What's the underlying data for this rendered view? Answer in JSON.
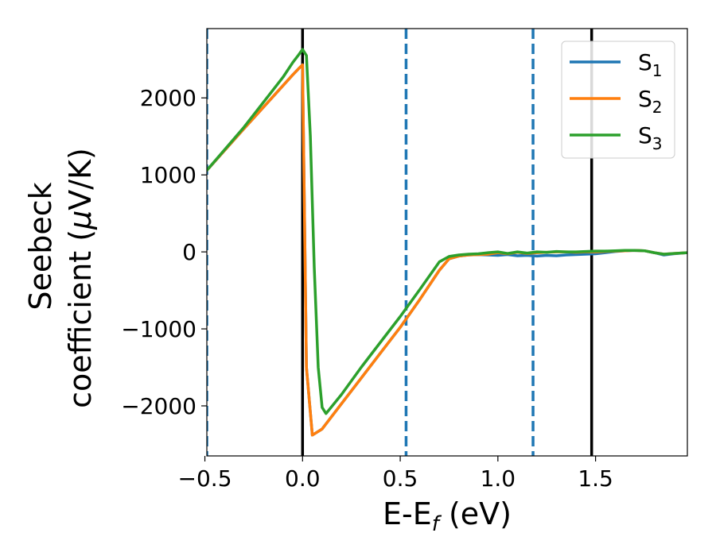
{
  "chart_data": {
    "type": "line",
    "title": "",
    "xlabel": "E-E",
    "xlabel_sub": "f",
    "xlabel_unit": " (eV)",
    "ylabel_line1": "Seebeck",
    "ylabel_line2": "coefficient  (",
    "ylabel_mu": "μ",
    "ylabel_unit": "V/K)",
    "xlim": [
      -0.49,
      1.97
    ],
    "ylim": [
      -2650,
      2900
    ],
    "xticks": [
      -0.5,
      0.0,
      0.5,
      1.0,
      1.5
    ],
    "xtick_labels": [
      "−0.5",
      "0.0",
      "0.5",
      "1.0",
      "1.5"
    ],
    "yticks": [
      -2000,
      -1000,
      0,
      1000,
      2000
    ],
    "ytick_labels": [
      "−2000",
      "−1000",
      "0",
      "1000",
      "2000"
    ],
    "grid": false,
    "legend_position": "top-right",
    "vertical_lines": [
      {
        "x": -0.49,
        "style": "dashed",
        "color": "#1f77b4"
      },
      {
        "x": 0.0,
        "style": "solid",
        "color": "#000000"
      },
      {
        "x": 0.53,
        "style": "dashed",
        "color": "#1f77b4"
      },
      {
        "x": 1.18,
        "style": "dashed",
        "color": "#1f77b4"
      },
      {
        "x": 1.48,
        "style": "solid",
        "color": "#000000"
      }
    ],
    "series": [
      {
        "name": "S",
        "sub": "1",
        "color": "#1f77b4",
        "x": [
          -0.49,
          -0.3,
          -0.1,
          -0.05,
          -0.02,
          0.0,
          0.02,
          0.05,
          0.1,
          0.2,
          0.3,
          0.4,
          0.5,
          0.6,
          0.7,
          0.75,
          0.8,
          0.85,
          0.9,
          0.95,
          1.0,
          1.05,
          1.1,
          1.15,
          1.2,
          1.25,
          1.3,
          1.35,
          1.4,
          1.45,
          1.5,
          1.55,
          1.6,
          1.65,
          1.7,
          1.75,
          1.8,
          1.85,
          1.9,
          1.97
        ],
        "y": [
          1060,
          1600,
          2160,
          2300,
          2380,
          2430,
          -1500,
          -2380,
          -2300,
          -1970,
          -1640,
          -1310,
          -980,
          -620,
          -240,
          -90,
          -55,
          -40,
          -35,
          -40,
          -45,
          -35,
          -50,
          -45,
          -55,
          -45,
          -50,
          -40,
          -35,
          -30,
          -25,
          -10,
          5,
          15,
          20,
          15,
          -10,
          -40,
          -25,
          -10
        ]
      },
      {
        "name": "S",
        "sub": "2",
        "color": "#ff7f0e",
        "x": [
          -0.49,
          -0.3,
          -0.1,
          -0.05,
          -0.02,
          0.0,
          0.02,
          0.05,
          0.1,
          0.2,
          0.3,
          0.4,
          0.5,
          0.6,
          0.7,
          0.75,
          0.8,
          0.85,
          0.9,
          0.95,
          1.0,
          1.05,
          1.1,
          1.15,
          1.2,
          1.25,
          1.3,
          1.35,
          1.4,
          1.45,
          1.5,
          1.55,
          1.6,
          1.65,
          1.7,
          1.75,
          1.8,
          1.85,
          1.9,
          1.97
        ],
        "y": [
          1060,
          1600,
          2160,
          2300,
          2380,
          2430,
          -1500,
          -2380,
          -2300,
          -1970,
          -1640,
          -1310,
          -980,
          -620,
          -240,
          -90,
          -55,
          -40,
          -35,
          -30,
          -10,
          -25,
          -5,
          -20,
          -10,
          -5,
          0,
          0,
          -5,
          0,
          0,
          5,
          10,
          15,
          20,
          15,
          -10,
          -30,
          -20,
          -10
        ]
      },
      {
        "name": "S",
        "sub": "3",
        "color": "#2ca02c",
        "x": [
          -0.49,
          -0.3,
          -0.1,
          -0.05,
          -0.02,
          0.0,
          0.02,
          0.04,
          0.06,
          0.08,
          0.1,
          0.12,
          0.2,
          0.3,
          0.4,
          0.5,
          0.6,
          0.7,
          0.75,
          0.8,
          0.85,
          0.9,
          0.95,
          1.0,
          1.05,
          1.1,
          1.15,
          1.2,
          1.25,
          1.3,
          1.35,
          1.4,
          1.45,
          1.5,
          1.55,
          1.6,
          1.65,
          1.7,
          1.75,
          1.8,
          1.85,
          1.9,
          1.97
        ],
        "y": [
          1060,
          1620,
          2270,
          2460,
          2560,
          2630,
          2550,
          1500,
          -200,
          -1500,
          -2020,
          -2100,
          -1850,
          -1500,
          -1170,
          -840,
          -490,
          -130,
          -60,
          -40,
          -30,
          -25,
          -10,
          0,
          -20,
          0,
          -15,
          0,
          -5,
          5,
          0,
          0,
          5,
          10,
          10,
          15,
          20,
          20,
          15,
          -10,
          -30,
          -20,
          -10
        ]
      }
    ]
  }
}
